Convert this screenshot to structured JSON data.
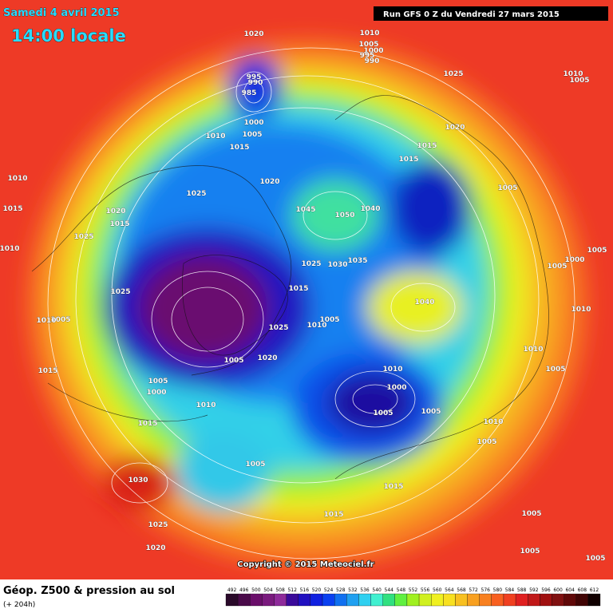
{
  "header": {
    "date_line": "Samedi 4 avril 2015",
    "time_line": "14:00 locale"
  },
  "run_info": "Run GFS 0 Z du Vendredi 27 mars 2015",
  "copyright": "Copyright © 2015 Meteociel.fr",
  "footer": {
    "title": "Géop. Z500 & pression au sol",
    "lead": "(+ 204h)"
  },
  "isobar_labels": [
    "1020",
    "1010",
    "1005",
    "1000",
    "995",
    "990",
    "1025",
    "1010",
    "1005",
    "995",
    "990",
    "985",
    "1000",
    "1020",
    "1010",
    "1005",
    "1015",
    "1015",
    "1015",
    "1010",
    "1020",
    "1005",
    "1025",
    "1015",
    "1020",
    "1045",
    "1040",
    "1050",
    "1015",
    "1025",
    "1010",
    "1005",
    "1000",
    "1005",
    "1025",
    "1030",
    "1035",
    "1025",
    "1015",
    "1040",
    "1005",
    "1010",
    "1005",
    "1010",
    "1010",
    "1025",
    "1010",
    "1020",
    "1005",
    "1015",
    "1010",
    "1005",
    "1000",
    "1005",
    "1000",
    "1010",
    "1005",
    "1005",
    "1015",
    "1010",
    "1005",
    "1005",
    "1030",
    "1015",
    "1015",
    "1005",
    "1025",
    "1020",
    "1005",
    "1005"
  ],
  "legend": {
    "levels": [
      492,
      496,
      500,
      504,
      508,
      512,
      516,
      520,
      524,
      528,
      532,
      536,
      540,
      544,
      548,
      552,
      556,
      560,
      564,
      568,
      572,
      576,
      580,
      584,
      588,
      592,
      596,
      600,
      604,
      608,
      612
    ],
    "colors": [
      "#2a0a2a",
      "#4a0a4a",
      "#6a0e6a",
      "#7a1a7e",
      "#8e2a9a",
      "#3a0a9a",
      "#2010c0",
      "#1020e0",
      "#0a40f0",
      "#1070f0",
      "#20a0f0",
      "#30d0f0",
      "#40f0d0",
      "#30e080",
      "#60f040",
      "#a0f020",
      "#d0f020",
      "#f0f020",
      "#f8e020",
      "#f8c020",
      "#f8a020",
      "#f88020",
      "#f86020",
      "#f04020",
      "#e02020",
      "#c01818",
      "#a01010",
      "#801010",
      "#600808",
      "#400404",
      "#100000"
    ]
  }
}
